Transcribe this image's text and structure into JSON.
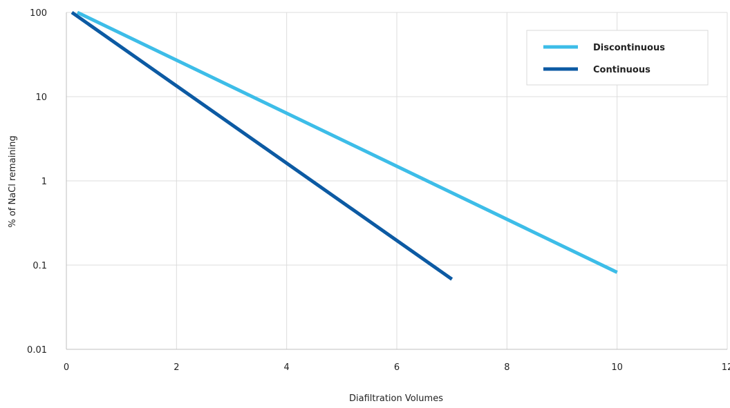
{
  "chart_data": {
    "type": "line",
    "title": "",
    "xlabel": "Diafiltration Volumes",
    "ylabel": "% of NaCl remaining",
    "xlim": [
      0,
      12
    ],
    "ylim": [
      0.01,
      100
    ],
    "y_scale": "log",
    "x_ticks": [
      0,
      2,
      4,
      6,
      8,
      10,
      12
    ],
    "x_tick_labels": [
      "0",
      "2",
      "4",
      "6",
      "8",
      "10",
      "12"
    ],
    "y_ticks": [
      0.01,
      0.1,
      1,
      10,
      100
    ],
    "y_tick_labels": [
      "0.01",
      "0.1",
      "1",
      "10",
      "100"
    ],
    "grid": true,
    "legend_position": "top-right",
    "series": [
      {
        "name": "Discontinuous",
        "color": "#3dbde8",
        "points": [
          [
            0.2,
            100
          ],
          [
            10,
            0.082
          ]
        ]
      },
      {
        "name": "Continuous",
        "color": "#0c5aa3",
        "points": [
          [
            0.1,
            100
          ],
          [
            7,
            0.068
          ]
        ]
      }
    ]
  }
}
